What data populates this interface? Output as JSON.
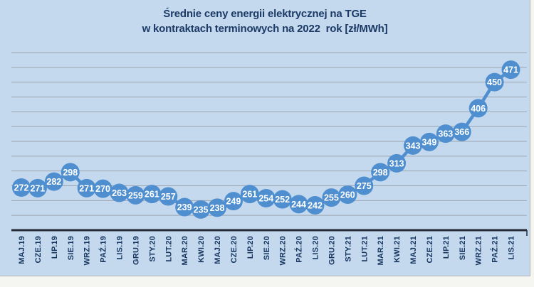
{
  "title": {
    "line1": "Średnie ceny energii elektrycznej na TGE",
    "line2": "w kontraktach terminowych na 2022  rok [zł/MWh]"
  },
  "chart_data": {
    "type": "line",
    "title": "Średnie ceny energii elektrycznej na TGE w kontraktach terminowych na 2022 rok [zł/MWh]",
    "xlabel": "",
    "ylabel": "",
    "categories": [
      "MAJ.19",
      "CZE.19",
      "LIP.19",
      "SIE.19",
      "WRZ.19",
      "PAŹ.19",
      "LIS.19",
      "GRU.19",
      "STY.20",
      "LUT.20",
      "MAR.20",
      "KWI.20",
      "MAJ.20",
      "CZE.20",
      "LIP.20",
      "SIE.20",
      "WRZ.20",
      "PAŹ.20",
      "LIS.20",
      "GRU.20",
      "STY.21",
      "LUT.21",
      "MAR.21",
      "KWI.21",
      "MAJ.21",
      "CZE.21",
      "LIP.21",
      "SIE.21",
      "WRZ.21",
      "PAŹ.21",
      "LIS.21"
    ],
    "values": [
      272,
      271,
      282,
      298,
      271,
      270,
      263,
      259,
      261,
      257,
      239,
      235,
      238,
      249,
      261,
      254,
      252,
      244,
      242,
      255,
      260,
      275,
      298,
      313,
      343,
      349,
      363,
      366,
      406,
      450,
      471
    ],
    "ylim": [
      200,
      500
    ],
    "gridline_step": 25,
    "grid": "horizontal",
    "legend": "none",
    "data_labels": "white, centered on circular markers",
    "x_tick_rotation_deg": 90
  },
  "colors": {
    "page_bg": "#f5f5f1",
    "chart_bg": "#c5d9ee",
    "title_text": "#1b3a66",
    "series": "#4f8fd0",
    "marker_label": "#ffffff",
    "gridline": "#9aa5b1",
    "axis": "#252a38",
    "tick_label": "#16355f",
    "panel_border": "#b3b3b3"
  }
}
